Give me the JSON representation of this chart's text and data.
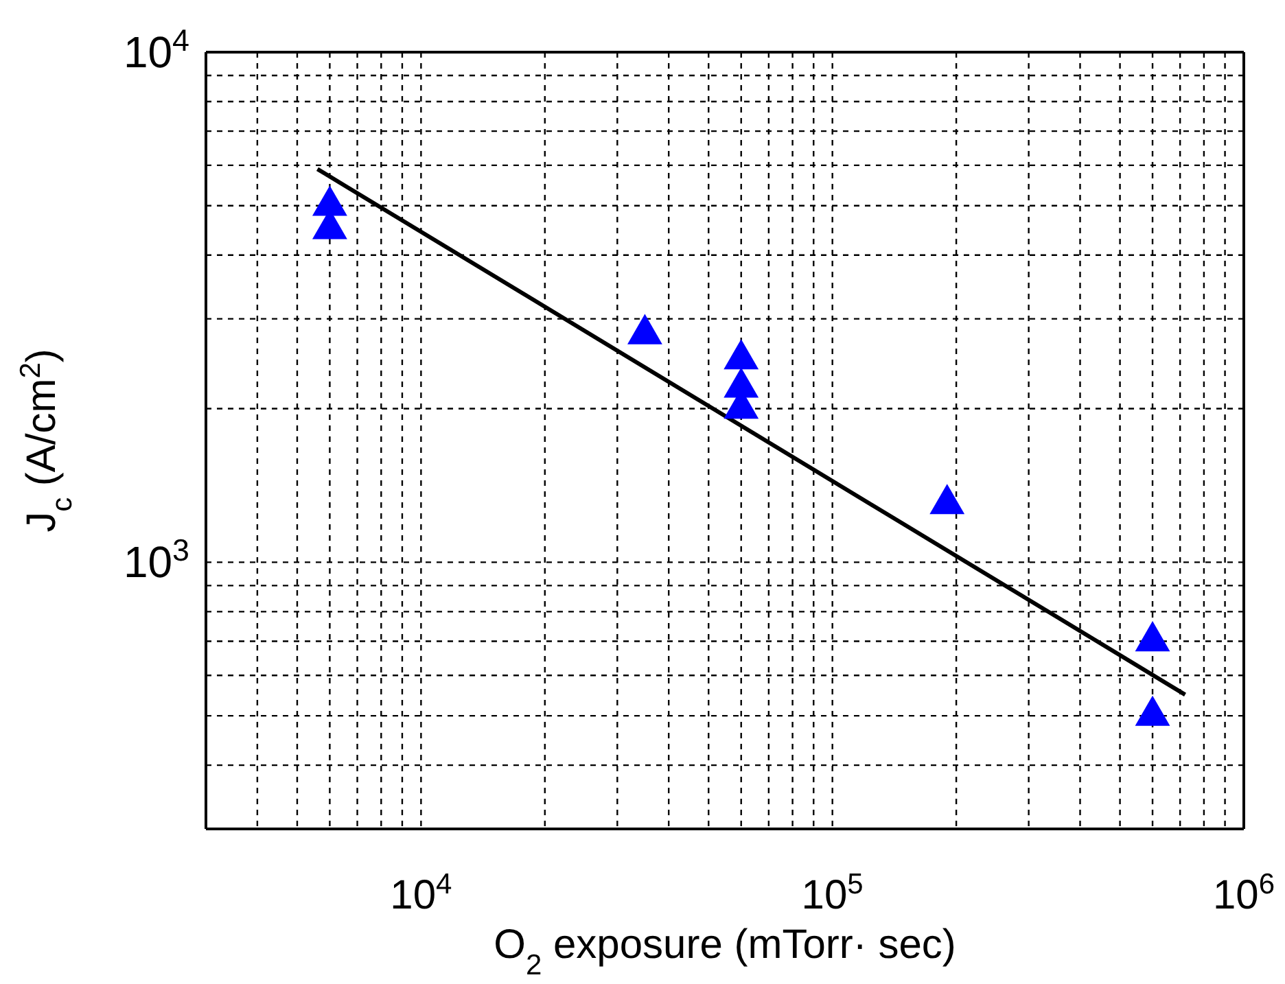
{
  "chart_data": {
    "type": "scatter",
    "xlabel": "O$_{2}$ exposure (mTorr· sec)",
    "ylabel": "J$_{c}$ (A/cm$^{2}$)",
    "log": "xy",
    "grid": true,
    "marker": "triangle",
    "xlim": [
      3000,
      1000000
    ],
    "xticks": [
      {
        "value": 4000,
        "label": null
      },
      {
        "value": 5000,
        "label": null
      },
      {
        "value": 6000,
        "label": null
      },
      {
        "value": 7000,
        "label": null
      },
      {
        "value": 8000,
        "label": null
      },
      {
        "value": 9000,
        "label": null
      },
      {
        "value": 10000,
        "label": "10$^{4}$"
      },
      {
        "value": 20000,
        "label": null
      },
      {
        "value": 30000,
        "label": null
      },
      {
        "value": 40000,
        "label": null
      },
      {
        "value": 50000,
        "label": null
      },
      {
        "value": 60000,
        "label": null
      },
      {
        "value": 70000,
        "label": null
      },
      {
        "value": 80000,
        "label": null
      },
      {
        "value": 90000,
        "label": null
      },
      {
        "value": 100000,
        "label": "10$^{5}$"
      },
      {
        "value": 200000,
        "label": null
      },
      {
        "value": 300000,
        "label": null
      },
      {
        "value": 400000,
        "label": null
      },
      {
        "value": 500000,
        "label": null
      },
      {
        "value": 600000,
        "label": null
      },
      {
        "value": 700000,
        "label": null
      },
      {
        "value": 800000,
        "label": null
      },
      {
        "value": 900000,
        "label": null
      },
      {
        "value": 1000000,
        "label": "10$^{6}$"
      }
    ],
    "ylim": [
      300,
      10000
    ],
    "yticks": [
      {
        "value": 400,
        "label": null
      },
      {
        "value": 500,
        "label": null
      },
      {
        "value": 600,
        "label": null
      },
      {
        "value": 700,
        "label": null
      },
      {
        "value": 800,
        "label": null
      },
      {
        "value": 900,
        "label": null
      },
      {
        "value": 1000,
        "label": "10$^{3}$"
      },
      {
        "value": 2000,
        "label": null
      },
      {
        "value": 3000,
        "label": null
      },
      {
        "value": 4000,
        "label": null
      },
      {
        "value": 5000,
        "label": null
      },
      {
        "value": 6000,
        "label": null
      },
      {
        "value": 7000,
        "label": null
      },
      {
        "value": 8000,
        "label": null
      },
      {
        "value": 9000,
        "label": null
      },
      {
        "value": 10000,
        "label": "10$^{4}$"
      }
    ],
    "series": [
      {
        "color": "#0000ff",
        "x": [
          6000,
          6000,
          35000,
          60000,
          60000,
          60000,
          190000,
          600000,
          600000
        ],
        "values": [
          5000,
          4500,
          2800,
          2500,
          2200,
          2000,
          1300,
          700,
          500
        ]
      },
      {
        "type": "line",
        "marker": "none",
        "color": "#000000",
        "x": [
          5600,
          720000
        ],
        "values": [
          5900,
          550
        ]
      }
    ]
  }
}
